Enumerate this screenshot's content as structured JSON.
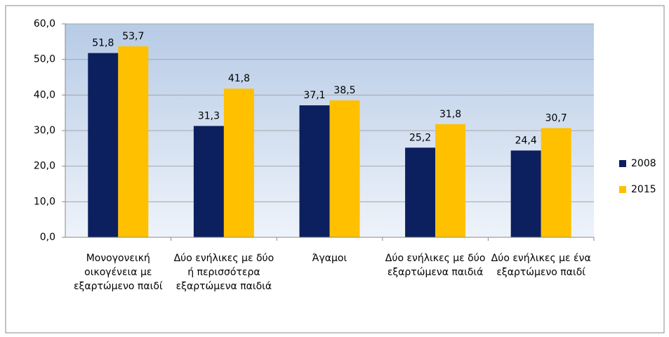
{
  "chart_data": {
    "type": "bar",
    "categories": [
      "Μονογονεική οικογένεια με εξαρτώμενο παιδί",
      "Δύο ενήλικες με δύο ή περισσότερα εξαρτώμενα παιδιά",
      "Άγαμοι",
      "Δύο ενήλικες με δύο εξαρτώμενα παιδιά",
      "Δύο ενήλικες με ένα εξαρτώμενο παιδί"
    ],
    "series": [
      {
        "name": "2008",
        "color": "#0c1f5e",
        "values": [
          51.8,
          31.3,
          37.1,
          25.2,
          24.4
        ],
        "value_labels": [
          "51,8",
          "31,3",
          "37,1",
          "25,2",
          "24,4"
        ]
      },
      {
        "name": "2015",
        "color": "#ffc000",
        "values": [
          53.7,
          41.8,
          38.5,
          31.8,
          30.7
        ],
        "value_labels": [
          "53,7",
          "41,8",
          "38,5",
          "31,8",
          "30,7"
        ]
      }
    ],
    "ylim": [
      0,
      60
    ],
    "yticks": [
      {
        "value": 0,
        "label": "0,0"
      },
      {
        "value": 10,
        "label": "10,0"
      },
      {
        "value": 20,
        "label": "20,0"
      },
      {
        "value": 30,
        "label": "30,0"
      },
      {
        "value": 40,
        "label": "40,0"
      },
      {
        "value": 50,
        "label": "50,0"
      },
      {
        "value": 60,
        "label": "60,0"
      }
    ],
    "grid": true,
    "legend": "right"
  }
}
